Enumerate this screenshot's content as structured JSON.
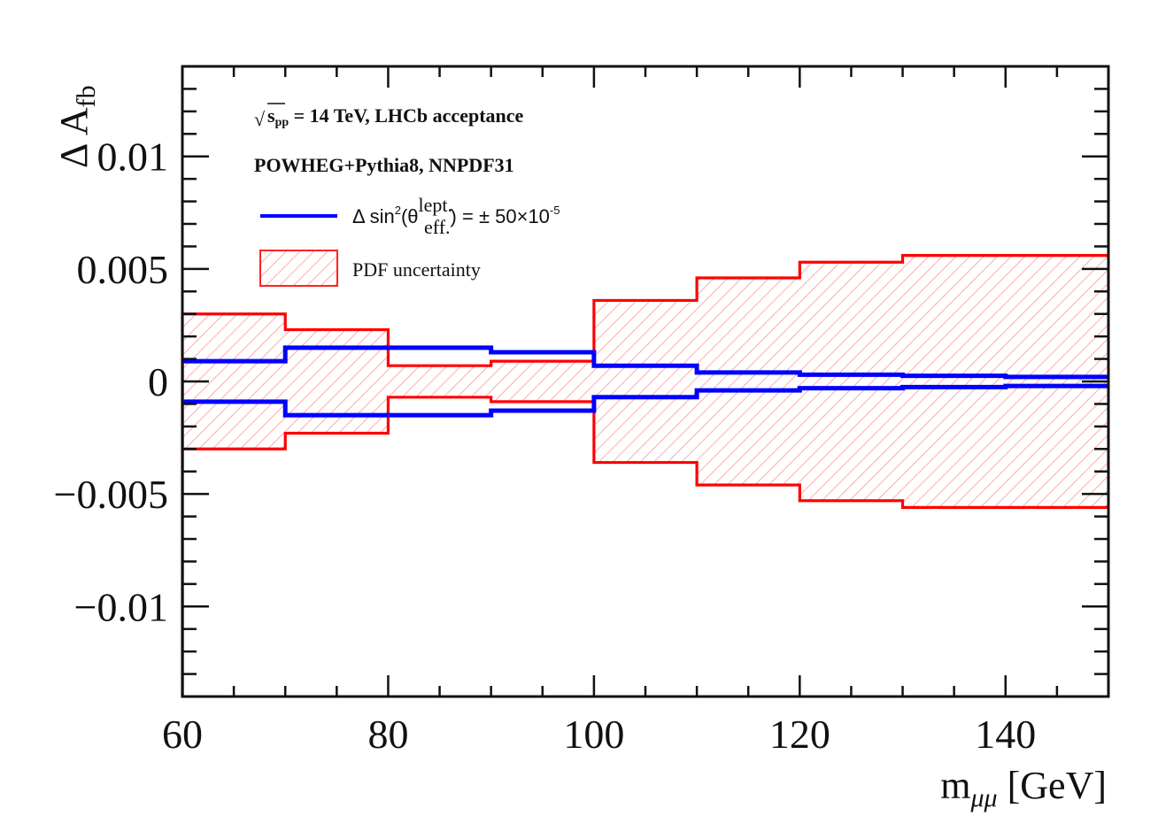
{
  "chart_data": {
    "type": "line",
    "title": "",
    "xlabel": "m_{μμ} [GeV]",
    "xlabel_main": "m",
    "xlabel_sub": "μμ",
    "xlabel_unit": " [GeV]",
    "ylabel": "Δ A_fb",
    "ylabel_main": "Δ A",
    "ylabel_sub": "fb",
    "xlim": [
      60,
      150
    ],
    "ylim": [
      -0.014,
      0.014
    ],
    "x_ticks": [
      60,
      80,
      100,
      120,
      140
    ],
    "x_tick_labels": [
      "60",
      "80",
      "100",
      "120",
      "140"
    ],
    "y_ticks": [
      -0.01,
      -0.005,
      0,
      0.005,
      0.01
    ],
    "y_tick_labels": [
      "−0.01",
      "−0.005",
      "0",
      "0.005",
      "0.01"
    ],
    "grid": false,
    "legend_position": "top-left",
    "bin_edges": [
      60,
      70,
      80,
      90,
      100,
      110,
      120,
      130,
      140,
      150
    ],
    "series": [
      {
        "name": "Δ sin²(θ_eff^lept.) = ± 50×10⁻⁵",
        "kind": "symmetric-step-band-lines",
        "color": "#0000ff",
        "upper": [
          0.0009,
          0.0015,
          0.0015,
          0.0013,
          0.0007,
          0.0004,
          0.0003,
          0.00025,
          0.0002
        ],
        "lower": [
          -0.0009,
          -0.0015,
          -0.0015,
          -0.0013,
          -0.0007,
          -0.0004,
          -0.0003,
          -0.00025,
          -0.0002
        ]
      },
      {
        "name": "PDF uncertainty",
        "kind": "hatched-step-band",
        "color": "#ff0000",
        "upper": [
          0.003,
          0.0023,
          0.0007,
          0.0009,
          0.0036,
          0.0046,
          0.0053,
          0.0056,
          0.0056
        ],
        "lower": [
          -0.003,
          -0.0023,
          -0.0007,
          -0.0009,
          -0.0036,
          -0.0046,
          -0.0053,
          -0.0056,
          -0.0056
        ]
      }
    ],
    "annotations": [
      {
        "id": "energy",
        "sqrt_symbol": "√",
        "s": "s",
        "s_sub": "pp",
        "rest": " = 14 TeV, LHCb acceptance"
      },
      {
        "id": "generator",
        "text": "POWHEG+Pythia8, NNPDF31"
      }
    ],
    "legend": [
      {
        "label_prefix": "Δ sin",
        "sup2": "2",
        "open": "(θ",
        "sup": "lept.",
        "sub": "eff.",
        "close": ") = ± 50×10",
        "exp": "-5",
        "style": "line",
        "color": "#0000ff"
      },
      {
        "label": "PDF uncertainty",
        "style": "hatched-box",
        "color": "#ff0000"
      }
    ]
  }
}
